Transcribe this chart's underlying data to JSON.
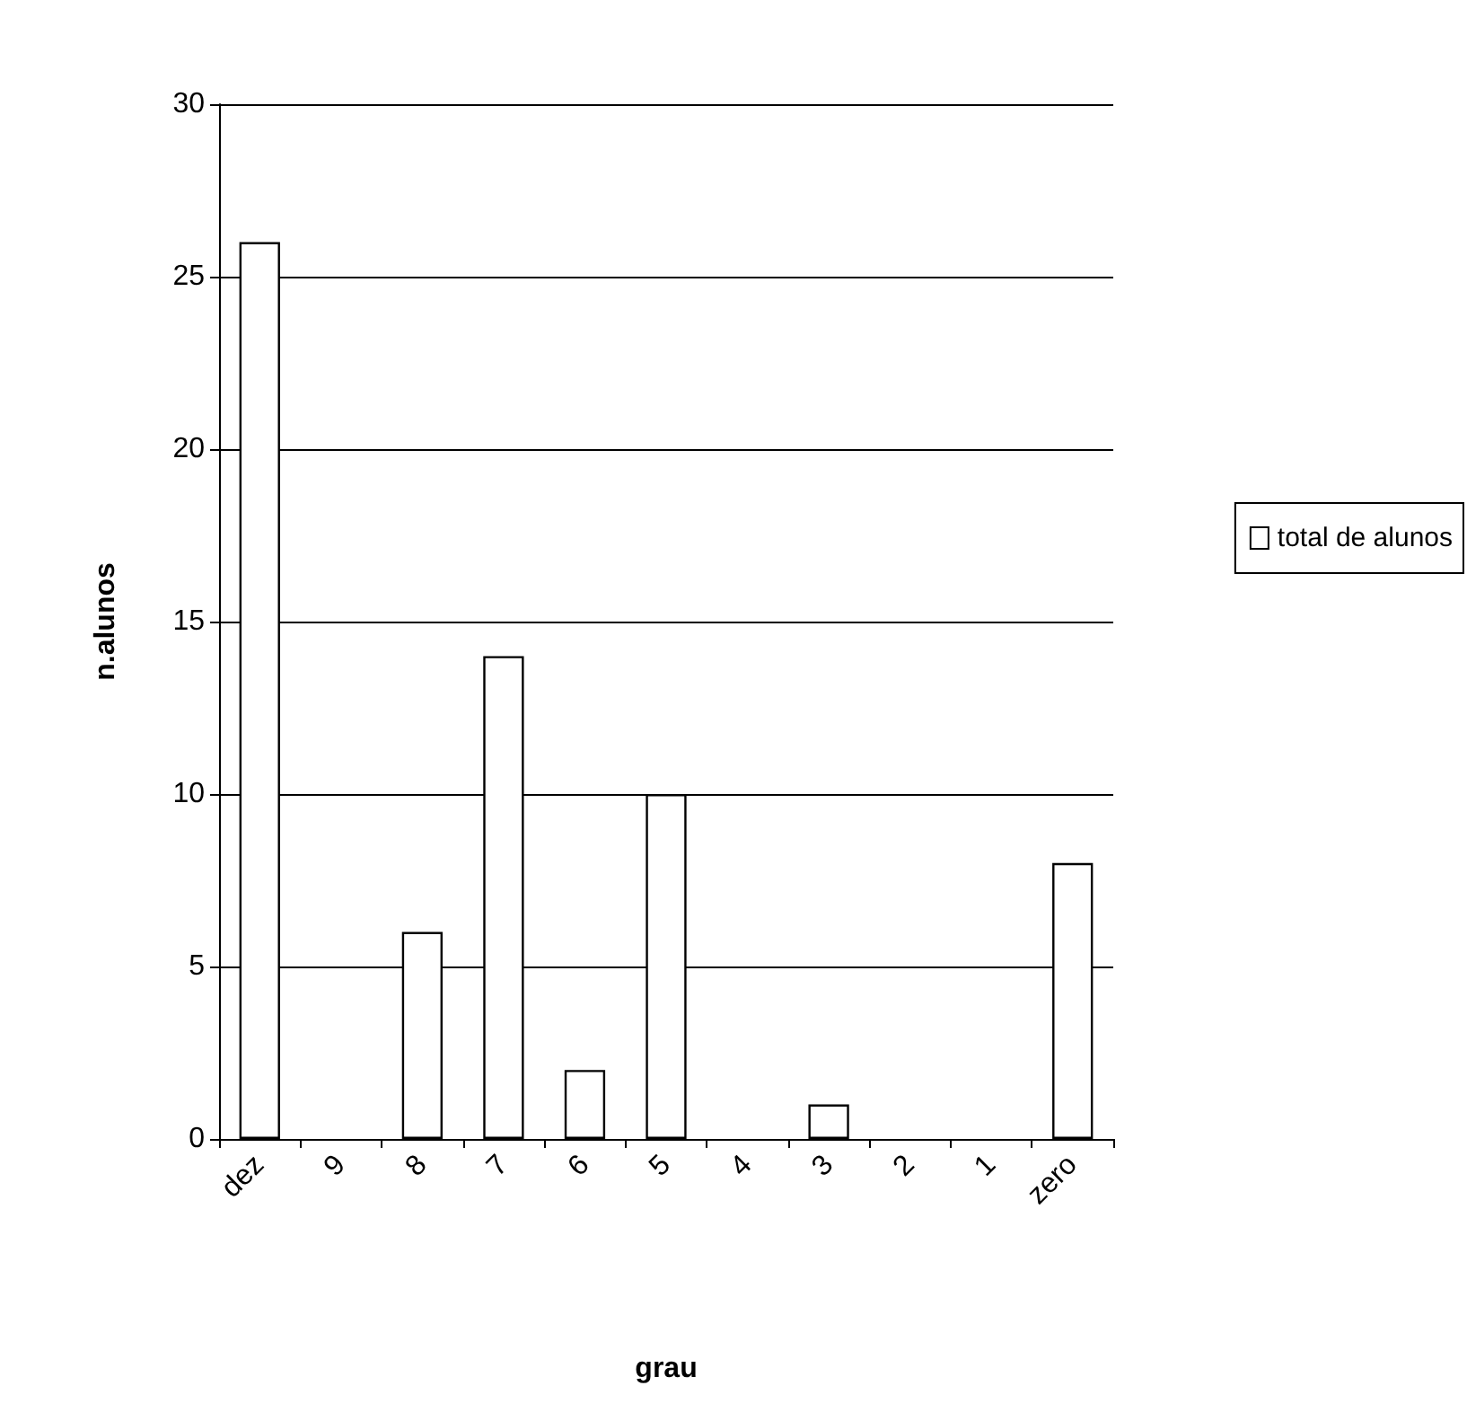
{
  "chart_data": {
    "type": "bar",
    "xlabel": "grau",
    "ylabel": "n.alunos",
    "categories": [
      "dez",
      "9",
      "8",
      "7",
      "6",
      "5",
      "4",
      "3",
      "2",
      "1",
      "zero"
    ],
    "series": [
      {
        "name": "total de alunos",
        "color": "#ffffff",
        "values": [
          26,
          0,
          6,
          14,
          2,
          10,
          0,
          1,
          0,
          0,
          8
        ]
      }
    ],
    "ylim": [
      0,
      30
    ],
    "yticks": [
      0,
      5,
      10,
      15,
      20,
      25,
      30
    ],
    "grid": "y",
    "legend": "right"
  }
}
